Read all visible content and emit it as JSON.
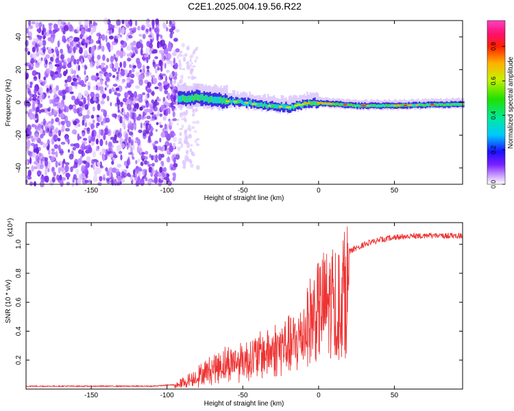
{
  "title": "C2E1.2025.004.19.56.R22",
  "chart_data": [
    {
      "type": "heatmap",
      "xlabel": "Height of straight line (km)",
      "ylabel": "Frequency (Hz)",
      "xlim": [
        -193,
        95
      ],
      "ylim": [
        -50,
        50
      ],
      "xticks": [
        -150,
        -100,
        -50,
        0,
        50
      ],
      "yticks": [
        -40,
        -20,
        0,
        20,
        40
      ],
      "colorbar": {
        "label": "Normalized spectral amplitude",
        "range": [
          0,
          0.95
        ],
        "ticks": [
          0.0,
          0.2,
          0.4,
          0.6,
          0.8
        ]
      },
      "ridge": {
        "x": [
          -95,
          -80,
          -65,
          -50,
          -35,
          -20,
          -5,
          10,
          25,
          50,
          95
        ],
        "y": [
          2,
          3,
          1,
          0,
          -2,
          -3,
          0,
          -1,
          -2,
          -2,
          -1
        ]
      }
    },
    {
      "type": "line",
      "xlabel": "Height of straight line (km)",
      "ylabel": "SNR (10 * v/v)",
      "yscale_label": "(x10⁴)",
      "xlim": [
        -193,
        95
      ],
      "ylim": [
        0.0,
        1.15
      ],
      "xticks": [
        -150,
        -100,
        -50,
        0,
        50
      ],
      "yticks": [
        0.2,
        0.4,
        0.6,
        0.8,
        1.0
      ],
      "series": [
        {
          "color": "#ee3333",
          "x": [
            -193,
            -150,
            -110,
            -95,
            -85,
            -75,
            -65,
            -55,
            -45,
            -35,
            -25,
            -15,
            -10,
            -5,
            0,
            5,
            10,
            15,
            20,
            30,
            40,
            50,
            70,
            95
          ],
          "y": [
            0.02,
            0.02,
            0.02,
            0.03,
            0.08,
            0.15,
            0.22,
            0.25,
            0.28,
            0.33,
            0.38,
            0.42,
            0.52,
            0.65,
            0.72,
            0.78,
            0.8,
            0.85,
            0.97,
            1.02,
            1.05,
            1.07,
            1.08,
            1.08
          ]
        }
      ]
    }
  ]
}
